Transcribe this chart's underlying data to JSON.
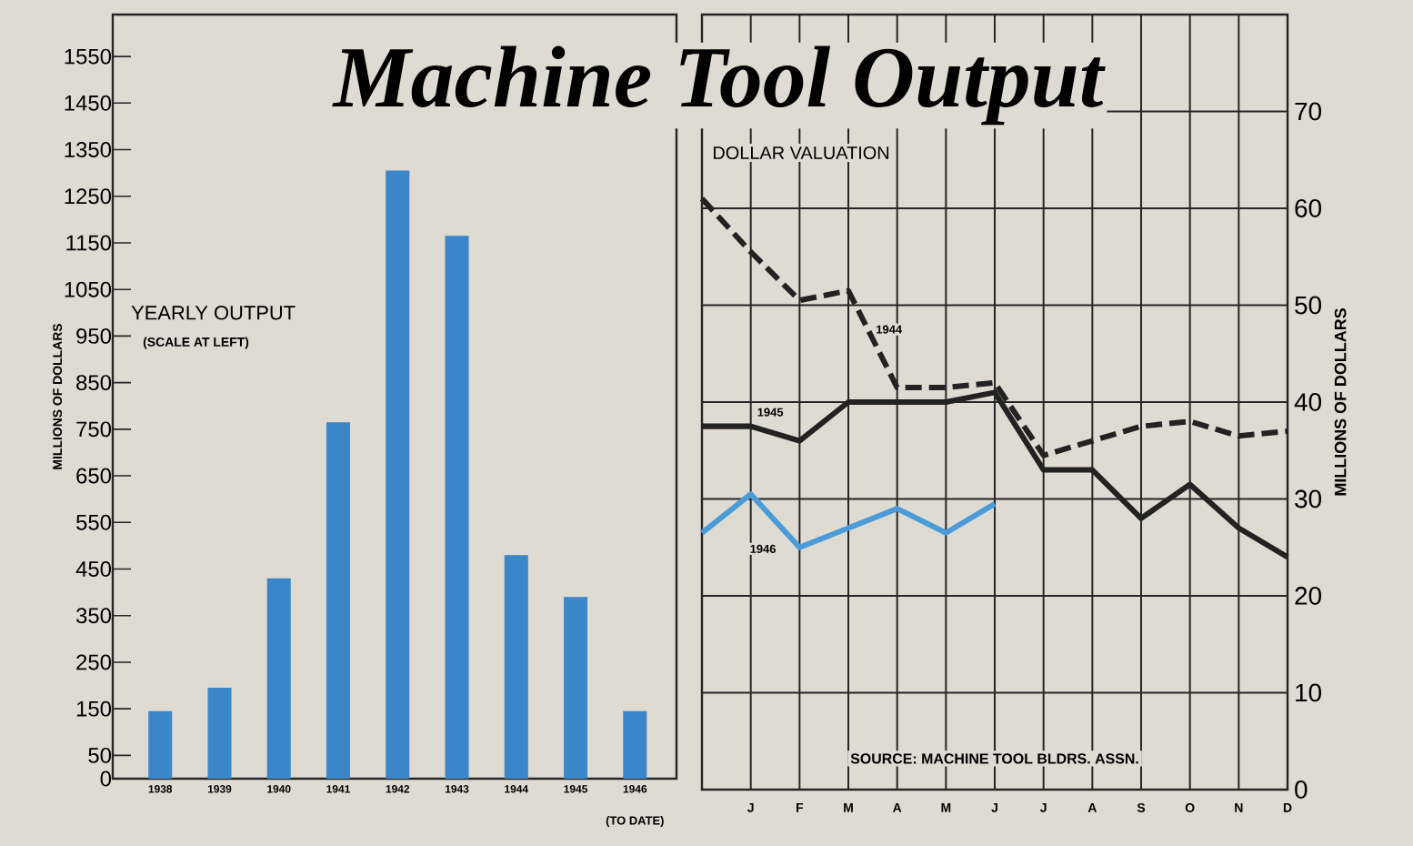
{
  "chart_data": [
    {
      "type": "bar",
      "title": "Machine Tool Output",
      "ylabel": "MILLIONS OF DOLLARS",
      "categories": [
        "1938",
        "1939",
        "1940",
        "1941",
        "1942",
        "1943",
        "1944",
        "1945",
        "1946"
      ],
      "values": [
        145,
        195,
        430,
        765,
        1305,
        1165,
        480,
        390,
        145
      ],
      "color": "#3a86c8",
      "ylim": [
        0,
        1640
      ],
      "yticks": [
        0,
        50,
        150,
        250,
        350,
        450,
        550,
        650,
        750,
        850,
        950,
        1050,
        1150,
        1250,
        1350,
        1450,
        1550
      ],
      "annotations": [
        "YEARLY OUTPUT",
        "(SCALE AT LEFT)",
        "(TO DATE)"
      ]
    },
    {
      "type": "line",
      "title": "DOLLAR VALUATION",
      "ylabel": "MILLIONS OF DOLLARS",
      "categories": [
        null,
        "J",
        "F",
        "M",
        "A",
        "M",
        "J",
        "J",
        "A",
        "S",
        "O",
        "N",
        "D"
      ],
      "series": [
        {
          "name": "1944",
          "color": "#222222",
          "line_style": "dashed",
          "values": [
            61,
            55.5,
            50.5,
            51.5,
            41.5,
            41.5,
            42,
            34.5,
            36,
            37.5,
            38,
            36.5,
            37
          ]
        },
        {
          "name": "1945",
          "color": "#222222",
          "line_style": "solid",
          "values": [
            37.5,
            37.5,
            36,
            40,
            40,
            40,
            41,
            33,
            33,
            28,
            31.5,
            27,
            24
          ]
        },
        {
          "name": "1946",
          "color": "#4b9bd9",
          "line_style": "solid",
          "values": [
            26.5,
            30.5,
            25,
            27,
            29,
            26.5,
            29.5,
            null,
            null,
            null,
            null,
            null,
            null
          ]
        }
      ],
      "ylim": [
        0,
        80
      ],
      "yticks": [
        0,
        10,
        20,
        30,
        40,
        50,
        60,
        70
      ],
      "grid": true,
      "marker": "none",
      "annotations": [
        "SOURCE: MACHINE TOOL BLDRS. ASSN."
      ]
    }
  ]
}
